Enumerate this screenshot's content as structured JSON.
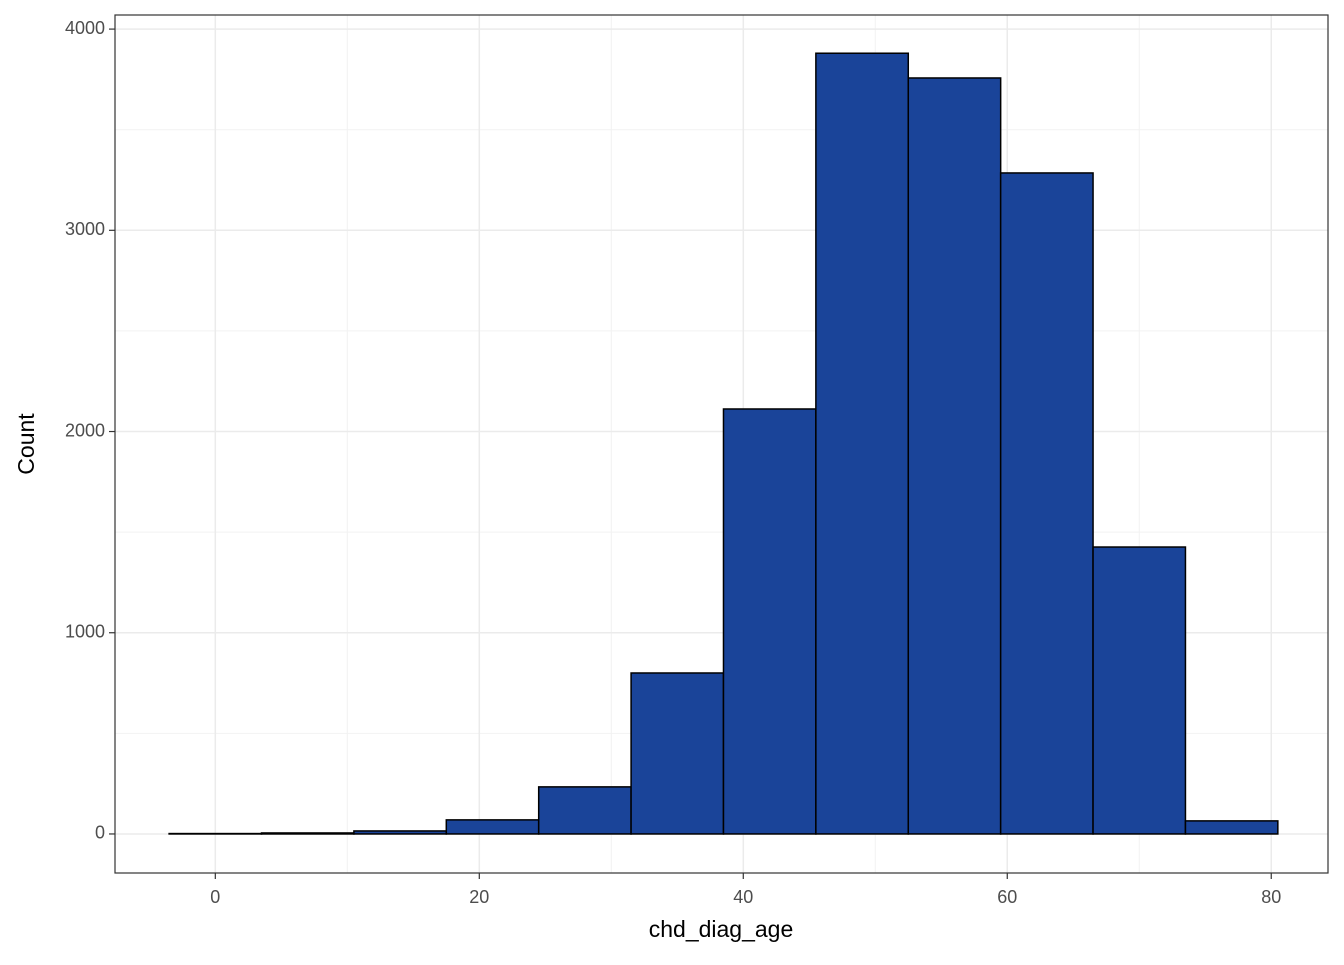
{
  "chart_data": {
    "type": "histogram",
    "x_label": "chd_diag_age",
    "y_label": "Count",
    "bins": [
      -3.5,
      3.5,
      10.5,
      17.5,
      24.5,
      31.5,
      38.5,
      45.5,
      52.5,
      59.5,
      66.5,
      73.5,
      80.5
    ],
    "values": [
      2,
      5,
      15,
      70,
      234,
      800,
      2112,
      3880,
      3757,
      3285,
      1426,
      65
    ],
    "color": "#1a4499",
    "xlim": [
      -7.6,
      84.3
    ],
    "ylim": [
      -194,
      4070
    ],
    "xticks": [
      0,
      20,
      40,
      60,
      80
    ],
    "yticks": [
      0,
      1000,
      2000,
      3000,
      4000
    ],
    "minor_xticks": [
      10,
      30,
      50,
      70
    ],
    "minor_yticks": [
      500,
      1500,
      2500,
      3500
    ],
    "grid": true
  }
}
